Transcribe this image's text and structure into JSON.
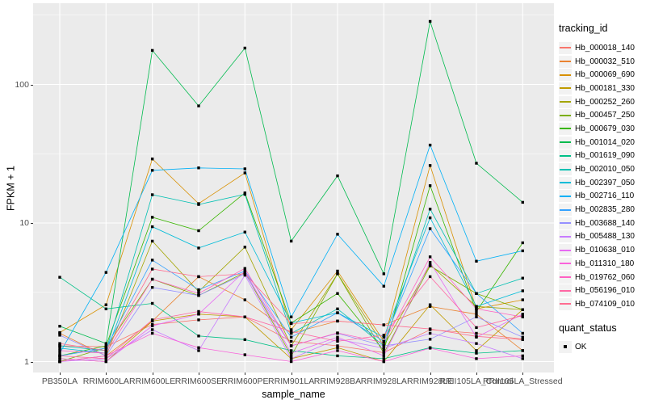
{
  "y_axis": {
    "title": "FPKM + 1",
    "tick_values": [
      100,
      10,
      1
    ],
    "tick_labels": [
      "100",
      "10",
      "1"
    ]
  },
  "x_axis": {
    "title": "sample_name"
  },
  "legend": {
    "title": "tracking_id",
    "quant_title": "quant_status",
    "quant_label": "OK",
    "quant_marker_color": "#000000"
  },
  "style": {
    "panel_bg": "#EBEBEB",
    "grid_color": "#FFFFFF",
    "tick_color": "#333333",
    "tick_label_color": "#4D4D4D",
    "point_color": "#000000"
  },
  "chart_data": {
    "type": "line",
    "title": "",
    "xlabel": "sample_name",
    "ylabel": "FPKM + 1",
    "y_scale": "log10",
    "ylim": [
      1,
      375
    ],
    "grid": true,
    "legend_position": "right",
    "marker": "black-square",
    "y_major_gridlines": [
      1,
      10,
      100
    ],
    "y_minor_gridlines": [
      3.162,
      31.62,
      316.2
    ],
    "categories": [
      "PB350LA",
      "RRIM600LA",
      "RRIM600LE",
      "RRIM600SE",
      "RRIM600PE",
      "RRIM901LA",
      "RRIM928BA",
      "RRIM928LA",
      "RRIM928LE",
      "RRII105LA_Control",
      "RRII105LA_Stressed"
    ],
    "series": [
      {
        "name": "Hb_000018_140",
        "color": "#F8766D",
        "values": [
          1.3,
          1.28,
          1.85,
          2.0,
          2.1,
          1.4,
          1.3,
          1.16,
          1.7,
          1.6,
          1.45
        ]
      },
      {
        "name": "Hb_000032_510",
        "color": "#EA8331",
        "values": [
          1.6,
          1.1,
          1.96,
          4.1,
          2.79,
          1.6,
          1.96,
          1.84,
          2.5,
          2.2,
          1.2
        ]
      },
      {
        "name": "Hb_000069_690",
        "color": "#D89000",
        "values": [
          1.62,
          2.57,
          29.0,
          13.8,
          23.0,
          1.7,
          4.5,
          1.4,
          26.0,
          2.4,
          2.79
        ]
      },
      {
        "name": "Hb_000181_330",
        "color": "#C09B00",
        "values": [
          1.05,
          1.0,
          1.96,
          2.2,
          2.1,
          1.05,
          1.26,
          1.0,
          2.57,
          1.2,
          2.37
        ]
      },
      {
        "name": "Hb_000252_260",
        "color": "#A3A500",
        "values": [
          1.0,
          1.1,
          7.4,
          3.2,
          6.7,
          1.3,
          4.3,
          1.3,
          5.0,
          2.5,
          2.37
        ]
      },
      {
        "name": "Hb_000457_250",
        "color": "#7CAE00",
        "values": [
          1.0,
          1.26,
          3.93,
          3.0,
          4.4,
          1.1,
          4.3,
          1.15,
          4.9,
          3.1,
          2.37
        ]
      },
      {
        "name": "Hb_000679_030",
        "color": "#39B600",
        "values": [
          1.1,
          1.3,
          11.0,
          8.8,
          16.5,
          1.9,
          3.1,
          1.2,
          18.6,
          2.3,
          7.2
        ]
      },
      {
        "name": "Hb_001014_020",
        "color": "#00BB4E",
        "values": [
          1.8,
          1.35,
          176,
          70,
          183,
          7.4,
          21.9,
          4.3,
          285,
          27.0,
          14.1
        ]
      },
      {
        "name": "Hb_001619_090",
        "color": "#00C087",
        "values": [
          4.06,
          2.4,
          2.63,
          1.53,
          1.44,
          1.2,
          1.1,
          1.05,
          1.26,
          1.15,
          1.2
        ]
      },
      {
        "name": "Hb_002010_050",
        "color": "#00C0B2",
        "values": [
          1.3,
          1.2,
          16.0,
          13.6,
          16.1,
          1.6,
          2.4,
          1.3,
          12.6,
          3.1,
          4.0
        ]
      },
      {
        "name": "Hb_002397_050",
        "color": "#00BCD8",
        "values": [
          1.25,
          1.15,
          9.4,
          6.6,
          8.6,
          1.9,
          2.25,
          1.5,
          10.9,
          2.5,
          3.24
        ]
      },
      {
        "name": "Hb_002716_110",
        "color": "#00B0F6",
        "values": [
          1.15,
          4.4,
          24.0,
          25.0,
          24.6,
          2.1,
          8.3,
          3.5,
          36.5,
          5.3,
          6.3
        ]
      },
      {
        "name": "Hb_002835_280",
        "color": "#35A2FF",
        "values": [
          1.1,
          1.25,
          5.4,
          3.3,
          4.5,
          1.5,
          2.25,
          1.4,
          9.1,
          3.1,
          1.6
        ]
      },
      {
        "name": "Hb_003688_140",
        "color": "#9590FF",
        "values": [
          1.55,
          1.1,
          3.43,
          3.0,
          4.3,
          1.3,
          1.6,
          1.3,
          1.45,
          2.1,
          1.5
        ]
      },
      {
        "name": "Hb_005488_130",
        "color": "#C77CFF",
        "values": [
          1.0,
          1.05,
          1.7,
          1.2,
          4.2,
          1.05,
          1.45,
          1.25,
          1.6,
          1.35,
          1.05
        ]
      },
      {
        "name": "Hb_010638_010",
        "color": "#E76BF3",
        "values": [
          1.05,
          1.0,
          1.81,
          2.2,
          4.5,
          1.15,
          1.5,
          1.1,
          5.2,
          1.5,
          2.2
        ]
      },
      {
        "name": "Hb_011310_180",
        "color": "#FA62DB",
        "values": [
          1.0,
          1.1,
          1.6,
          1.26,
          1.12,
          1.0,
          1.2,
          1.0,
          1.25,
          1.05,
          1.1
        ]
      },
      {
        "name": "Hb_019762_060",
        "color": "#FF61C3",
        "values": [
          1.2,
          1.15,
          3.93,
          3.1,
          4.7,
          1.3,
          1.61,
          1.37,
          5.7,
          2.4,
          2.1
        ]
      },
      {
        "name": "Hb_056196_010",
        "color": "#FF67A4",
        "values": [
          1.1,
          1.05,
          2.0,
          2.3,
          2.1,
          1.65,
          1.4,
          1.55,
          4.1,
          1.76,
          2.15
        ]
      },
      {
        "name": "Hb_074109_010",
        "color": "#FF6C90",
        "values": [
          1.35,
          1.2,
          4.65,
          4.1,
          4.3,
          1.88,
          1.96,
          1.84,
          1.72,
          1.52,
          1.44
        ]
      }
    ]
  }
}
